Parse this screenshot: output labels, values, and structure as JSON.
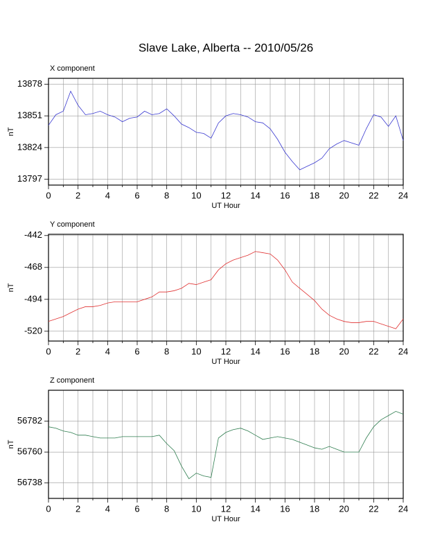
{
  "title": "Slave Lake, Alberta -- 2010/05/26",
  "chart_data": [
    {
      "type": "line",
      "subtitle": "X component",
      "xlabel": "UT Hour",
      "ylabel": "nT",
      "xlim": [
        0,
        24
      ],
      "xticks": [
        0,
        2,
        4,
        6,
        8,
        10,
        12,
        14,
        16,
        18,
        20,
        22,
        24
      ],
      "x_minor_ticks": [
        1,
        3,
        5,
        7,
        9,
        11,
        13,
        15,
        17,
        19,
        21,
        23
      ],
      "ylim": [
        13792,
        13883
      ],
      "yticks": [
        13797,
        13824,
        13851,
        13878
      ],
      "grid": true,
      "x": [
        0,
        0.5,
        1,
        1.5,
        2,
        2.5,
        3,
        3.5,
        4,
        4.5,
        5,
        5.5,
        6,
        6.5,
        7,
        7.5,
        8,
        8.5,
        9,
        9.5,
        10,
        10.5,
        11,
        11.5,
        12,
        12.5,
        13,
        13.5,
        14,
        14.5,
        15,
        15.5,
        16,
        16.5,
        17,
        17.5,
        18,
        18.5,
        19,
        19.5,
        20,
        20.5,
        21,
        21.5,
        22,
        22.5,
        23,
        23.5,
        24
      ],
      "series": [
        {
          "color": "#3838d0",
          "values": [
            13843,
            13852,
            13855,
            13872,
            13860,
            13852,
            13853,
            13855,
            13852,
            13850,
            13846,
            13849,
            13850,
            13855,
            13852,
            13853,
            13857,
            13851,
            13844,
            13841,
            13837,
            13836,
            13832,
            13845,
            13851,
            13853,
            13852,
            13850,
            13846,
            13845,
            13840,
            13831,
            13820,
            13812,
            13805,
            13808,
            13811,
            13815,
            13823,
            13827,
            13830,
            13828,
            13826,
            13840,
            13852,
            13850,
            13842,
            13851,
            13830
          ]
        }
      ]
    },
    {
      "type": "line",
      "subtitle": "Y component",
      "xlabel": "UT Hour",
      "ylabel": "nT",
      "xlim": [
        0,
        24
      ],
      "xticks": [
        0,
        2,
        4,
        6,
        8,
        10,
        12,
        14,
        16,
        18,
        20,
        22,
        24
      ],
      "x_minor_ticks": [
        1,
        3,
        5,
        7,
        9,
        11,
        13,
        15,
        17,
        19,
        21,
        23
      ],
      "ylim": [
        -528,
        -441
      ],
      "yticks": [
        -520,
        -494,
        -468,
        -442
      ],
      "grid": true,
      "x": [
        0,
        0.5,
        1,
        1.5,
        2,
        2.5,
        3,
        3.5,
        4,
        4.5,
        5,
        5.5,
        6,
        6.5,
        7,
        7.5,
        8,
        8.5,
        9,
        9.5,
        10,
        10.5,
        11,
        11.5,
        12,
        12.5,
        13,
        13.5,
        14,
        14.5,
        15,
        15.5,
        16,
        16.5,
        17,
        17.5,
        18,
        18.5,
        19,
        19.5,
        20,
        20.5,
        21,
        21.5,
        22,
        22.5,
        23,
        23.5,
        24
      ],
      "series": [
        {
          "color": "#e03030",
          "values": [
            -512,
            -510,
            -508,
            -505,
            -502,
            -500,
            -500,
            -499,
            -497,
            -496,
            -496,
            -496,
            -496,
            -494,
            -492,
            -488,
            -488,
            -487,
            -485,
            -481,
            -482,
            -480,
            -478,
            -470,
            -465,
            -462,
            -460,
            -458,
            -455,
            -456,
            -457,
            -462,
            -470,
            -480,
            -485,
            -490,
            -495,
            -502,
            -507,
            -510,
            -512,
            -513,
            -513,
            -512,
            -512,
            -514,
            -516,
            -518,
            -510
          ]
        }
      ]
    },
    {
      "type": "line",
      "subtitle": "Z component",
      "xlabel": "UT Hour",
      "ylabel": "nT",
      "xlim": [
        0,
        24
      ],
      "xticks": [
        0,
        2,
        4,
        6,
        8,
        10,
        12,
        14,
        16,
        18,
        20,
        22,
        24
      ],
      "x_minor_ticks": [
        1,
        3,
        5,
        7,
        9,
        11,
        13,
        15,
        17,
        19,
        21,
        23
      ],
      "ylim": [
        56727,
        56804
      ],
      "yticks": [
        56738,
        56760,
        56782
      ],
      "grid": true,
      "x": [
        0,
        0.5,
        1,
        1.5,
        2,
        2.5,
        3,
        3.5,
        4,
        4.5,
        5,
        5.5,
        6,
        6.5,
        7,
        7.5,
        8,
        8.5,
        9,
        9.5,
        10,
        10.5,
        11,
        11.5,
        12,
        12.5,
        13,
        13.5,
        14,
        14.5,
        15,
        15.5,
        16,
        16.5,
        17,
        17.5,
        18,
        18.5,
        19,
        19.5,
        20,
        20.5,
        21,
        21.5,
        22,
        22.5,
        23,
        23.5,
        24
      ],
      "series": [
        {
          "color": "#2e7d4f",
          "values": [
            56778,
            56777,
            56775,
            56774,
            56772,
            56772,
            56771,
            56770,
            56770,
            56770,
            56771,
            56771,
            56771,
            56771,
            56771,
            56772,
            56766,
            56761,
            56750,
            56741,
            56745,
            56743,
            56742,
            56770,
            56774,
            56776,
            56777,
            56775,
            56772,
            56769,
            56770,
            56771,
            56770,
            56769,
            56767,
            56765,
            56763,
            56762,
            56764,
            56762,
            56760,
            56760,
            56760,
            56770,
            56778,
            56783,
            56786,
            56789,
            56787
          ]
        }
      ]
    }
  ]
}
